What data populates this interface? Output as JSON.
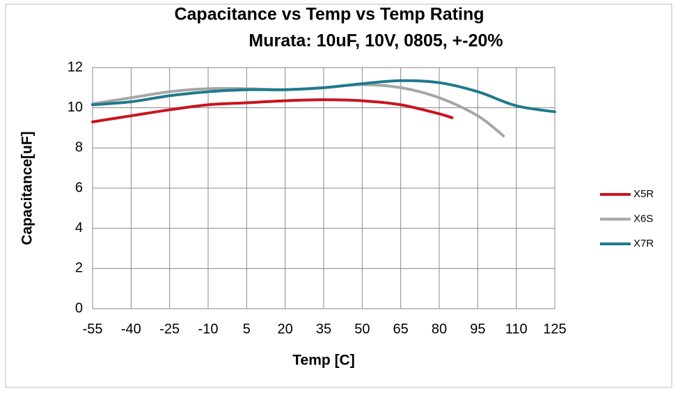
{
  "chart_data": {
    "type": "line",
    "title": "Capacitance vs Temp vs Temp Rating",
    "subtitle": "Murata: 10uF, 10V, 0805, +-20%",
    "xlabel": "Temp  [C]",
    "ylabel": "Capacitance[uF]",
    "xlim": [
      -55,
      125
    ],
    "xticks": [
      -55,
      -40,
      -25,
      -10,
      5,
      20,
      35,
      50,
      65,
      80,
      95,
      110,
      125
    ],
    "ylim": [
      0,
      12
    ],
    "yticks": [
      0,
      2,
      4,
      6,
      8,
      10,
      12
    ],
    "grid": true,
    "legend": "right",
    "series": [
      {
        "name": "X5R",
        "color": "#c8141e",
        "x": [
          -55,
          -40,
          -25,
          -10,
          5,
          20,
          35,
          50,
          65,
          80,
          85
        ],
        "values": [
          9.3,
          9.6,
          9.9,
          10.15,
          10.25,
          10.35,
          10.4,
          10.35,
          10.15,
          9.7,
          9.5
        ]
      },
      {
        "name": "X6S",
        "color": "#a6a6a6",
        "x": [
          -55,
          -40,
          -25,
          -10,
          5,
          20,
          35,
          50,
          65,
          80,
          95,
          105
        ],
        "values": [
          10.2,
          10.5,
          10.8,
          10.95,
          10.95,
          10.9,
          11.0,
          11.15,
          11.0,
          10.5,
          9.6,
          8.6
        ]
      },
      {
        "name": "X7R",
        "color": "#1f7a8c",
        "x": [
          -55,
          -40,
          -25,
          -10,
          5,
          20,
          35,
          50,
          65,
          80,
          95,
          110,
          125
        ],
        "values": [
          10.15,
          10.3,
          10.6,
          10.8,
          10.9,
          10.9,
          11.0,
          11.2,
          11.35,
          11.25,
          10.8,
          10.1,
          9.8
        ]
      }
    ]
  }
}
